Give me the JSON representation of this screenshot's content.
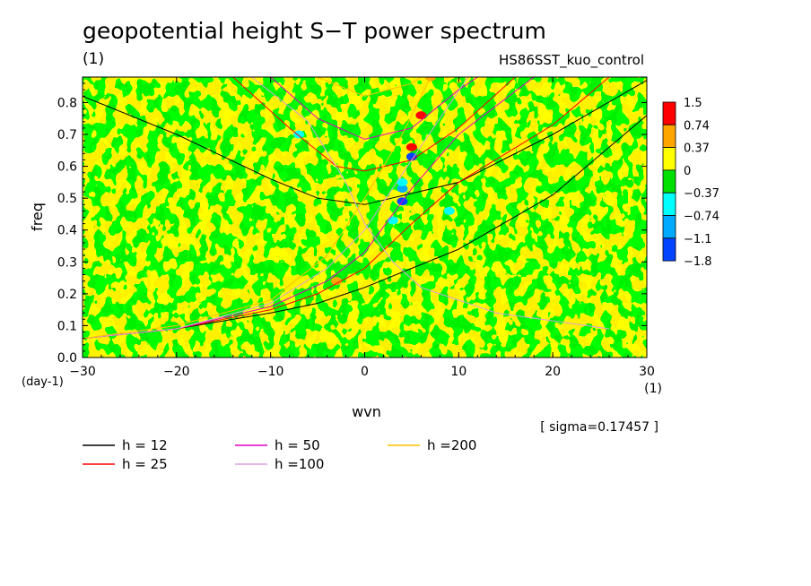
{
  "title": "geopotential height S−T power spectrum",
  "unit_label": "(1)",
  "run_label": "HS86SST_kuo_control",
  "sigma_label": "[ sigma=0.17457 ]",
  "chart_data": {
    "type": "heatmap",
    "xlabel": "wvn",
    "ylabel": "freq",
    "x_unit": "(1)",
    "y_unit": "(day-1)",
    "xlim": [
      -30,
      30
    ],
    "ylim": [
      0.0,
      0.88
    ],
    "xticks": [
      -30,
      -20,
      -10,
      0,
      10,
      20,
      30
    ],
    "xtick_labels": [
      "−30",
      "−20",
      "−10",
      "0",
      "10",
      "20",
      "30"
    ],
    "yticks": [
      0.0,
      0.1,
      0.2,
      0.3,
      0.4,
      0.5,
      0.6,
      0.7,
      0.8
    ],
    "ytick_labels": [
      "0.0",
      "0.1",
      "0.2",
      "0.3",
      "0.4",
      "0.5",
      "0.6",
      "0.7",
      "0.8"
    ],
    "colorbar": {
      "labels": [
        "1.5",
        "0.74",
        "0.37",
        "0",
        "−0.37",
        "−0.74",
        "−1.1",
        "−1.8"
      ],
      "colors": [
        "#ff0000",
        "#ffa500",
        "#ffff00",
        "#00e000",
        "#00ffff",
        "#00aaff",
        "#0044ff"
      ]
    },
    "background_levels": {
      "positive_color": "#ffff00",
      "negative_color": "#00e000"
    },
    "series": [
      {
        "name": "h = 12",
        "color": "#000000"
      },
      {
        "name": "h = 25",
        "color": "#ff0000"
      },
      {
        "name": "h = 50",
        "color": "#e000c0"
      },
      {
        "name": "h =100",
        "color": "#d8a0e0"
      },
      {
        "name": "h =200",
        "color": "#ffc000"
      }
    ],
    "dispersion_curves": [
      {
        "color": "#000000",
        "points": [
          [
            -30,
            0.06
          ],
          [
            -20,
            0.09
          ],
          [
            -10,
            0.14
          ],
          [
            -5,
            0.17
          ],
          [
            0,
            0.22
          ],
          [
            10,
            0.34
          ],
          [
            20,
            0.51
          ],
          [
            30,
            0.76
          ]
        ]
      },
      {
        "color": "#000000",
        "points": [
          [
            -30,
            0.82
          ],
          [
            -20,
            0.7
          ],
          [
            -10,
            0.56
          ],
          [
            -5,
            0.5
          ],
          [
            0,
            0.48
          ],
          [
            10,
            0.55
          ],
          [
            20,
            0.7
          ],
          [
            30,
            0.87
          ]
        ]
      },
      {
        "color": "#ff0000",
        "points": [
          [
            -30,
            0.06
          ],
          [
            -20,
            0.09
          ],
          [
            -10,
            0.15
          ],
          [
            -5,
            0.2
          ],
          [
            0,
            0.28
          ],
          [
            5,
            0.42
          ],
          [
            10,
            0.55
          ],
          [
            20,
            0.73
          ],
          [
            26,
            0.88
          ]
        ]
      },
      {
        "color": "#ff0000",
        "points": [
          [
            -14,
            0.88
          ],
          [
            -8,
            0.72
          ],
          [
            -3,
            0.6
          ],
          [
            0,
            0.585
          ],
          [
            5,
            0.62
          ],
          [
            10,
            0.72
          ],
          [
            16,
            0.88
          ]
        ]
      },
      {
        "color": "#e000c0",
        "points": [
          [
            -30,
            0.06
          ],
          [
            -20,
            0.09
          ],
          [
            -10,
            0.16
          ],
          [
            -4,
            0.24
          ],
          [
            0,
            0.33
          ],
          [
            5,
            0.53
          ],
          [
            10,
            0.7
          ],
          [
            18,
            0.88
          ]
        ]
      },
      {
        "color": "#e000c0",
        "points": [
          [
            -10,
            0.88
          ],
          [
            -5,
            0.75
          ],
          [
            0,
            0.685
          ],
          [
            5,
            0.72
          ],
          [
            10,
            0.84
          ],
          [
            12,
            0.88
          ]
        ]
      },
      {
        "color": "#d8a0e0",
        "points": [
          [
            -30,
            0.06
          ],
          [
            -20,
            0.09
          ],
          [
            -10,
            0.17
          ],
          [
            -4,
            0.28
          ],
          [
            0,
            0.4
          ],
          [
            5,
            0.62
          ],
          [
            11,
            0.88
          ]
        ]
      },
      {
        "color": "#d8a0e0",
        "points": [
          [
            -12,
            0.88
          ],
          [
            -6,
            0.74
          ],
          [
            -2,
            0.55
          ],
          [
            0,
            0.42
          ],
          [
            3,
            0.3
          ],
          [
            6,
            0.22
          ],
          [
            14,
            0.14
          ],
          [
            26,
            0.09
          ]
        ]
      },
      {
        "color": "#ffc000",
        "points": [
          [
            -30,
            0.06
          ],
          [
            -20,
            0.1
          ],
          [
            -10,
            0.18
          ],
          [
            -4,
            0.32
          ],
          [
            0,
            0.5
          ],
          [
            4,
            0.7
          ],
          [
            7,
            0.88
          ]
        ]
      },
      {
        "color": "#ffc000",
        "points": [
          [
            -5,
            0.88
          ],
          [
            0,
            0.82
          ],
          [
            5,
            0.86
          ],
          [
            6,
            0.88
          ]
        ]
      }
    ],
    "peaks": [
      {
        "x": 5,
        "y": 0.66,
        "value": 1.5
      },
      {
        "x": 5,
        "y": 0.63,
        "value": -1.8
      },
      {
        "x": 6,
        "y": 0.76,
        "value": 1.5
      },
      {
        "x": 4,
        "y": 0.53,
        "value": -1.1
      },
      {
        "x": 4,
        "y": 0.49,
        "value": -1.8
      },
      {
        "x": 4,
        "y": 0.55,
        "value": -0.74
      },
      {
        "x": 3,
        "y": 0.43,
        "value": -0.74
      },
      {
        "x": -3,
        "y": 0.25,
        "value": -0.37
      },
      {
        "x": -7,
        "y": 0.7,
        "value": -0.74
      },
      {
        "x": 9,
        "y": 0.46,
        "value": -0.74
      },
      {
        "x": 7,
        "y": 0.88,
        "value": 0.74
      },
      {
        "x": -3,
        "y": 0.24,
        "value": 0.74
      }
    ]
  }
}
